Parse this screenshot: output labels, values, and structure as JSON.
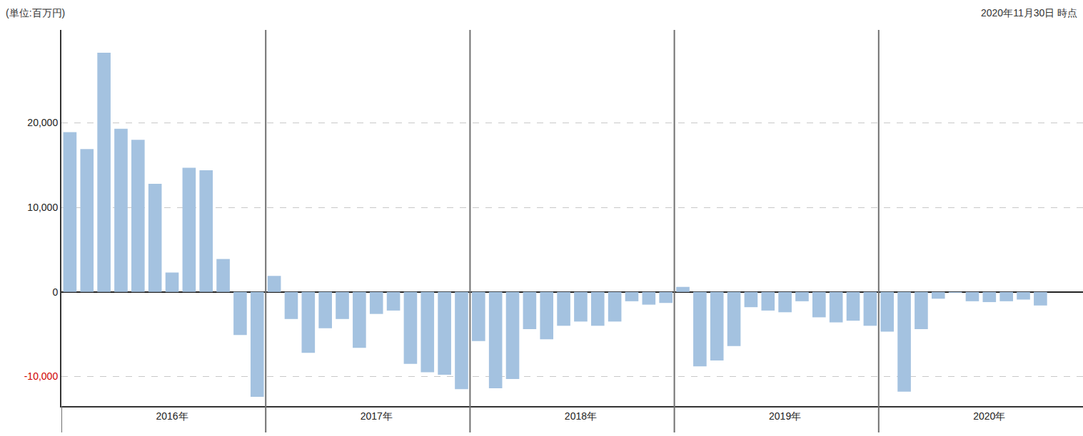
{
  "chart_data": {
    "type": "bar",
    "annotations": [
      "(単位:百万円)",
      "2020年11月30日 時点"
    ],
    "categories": [
      null,
      null,
      null,
      null,
      null,
      null,
      "2016年",
      null,
      null,
      null,
      null,
      null,
      null,
      null,
      null,
      null,
      null,
      null,
      "2017年",
      null,
      null,
      null,
      null,
      null,
      null,
      null,
      null,
      null,
      null,
      null,
      "2018年",
      null,
      null,
      null,
      null,
      null,
      null,
      null,
      null,
      null,
      null,
      null,
      "2019年",
      null,
      null,
      null,
      null,
      null,
      null,
      null,
      null,
      null,
      null,
      null,
      "2020年",
      null,
      null,
      null,
      null,
      null
    ],
    "values": [
      18900,
      16900,
      28300,
      19300,
      18000,
      12800,
      2300,
      14700,
      14400,
      3900,
      -5100,
      -12400,
      1900,
      -3200,
      -7200,
      -4300,
      -3200,
      -6600,
      -2600,
      -2200,
      -8500,
      -9500,
      -9800,
      -11500,
      -5800,
      -11400,
      -10300,
      -4400,
      -5600,
      -4000,
      -3500,
      -4000,
      -3500,
      -1100,
      -1500,
      -1300,
      600,
      -8800,
      -8100,
      -6400,
      -1800,
      -2200,
      -2400,
      -1100,
      -3000,
      -3600,
      -3400,
      -4000,
      -4700,
      -11800,
      -4400,
      -800,
      -100,
      -1100,
      -1200,
      -1100,
      -900,
      -1600,
      null,
      null
    ],
    "color": "#a4c2e0",
    "ylim": [
      -13500,
      31000
    ],
    "yticks": [
      {
        "value": -10000,
        "label": "-10,000"
      },
      0,
      {
        "value": 10000,
        "label": "10,000"
      },
      {
        "value": 20000,
        "label": "20,000"
      }
    ],
    "grid": true
  }
}
